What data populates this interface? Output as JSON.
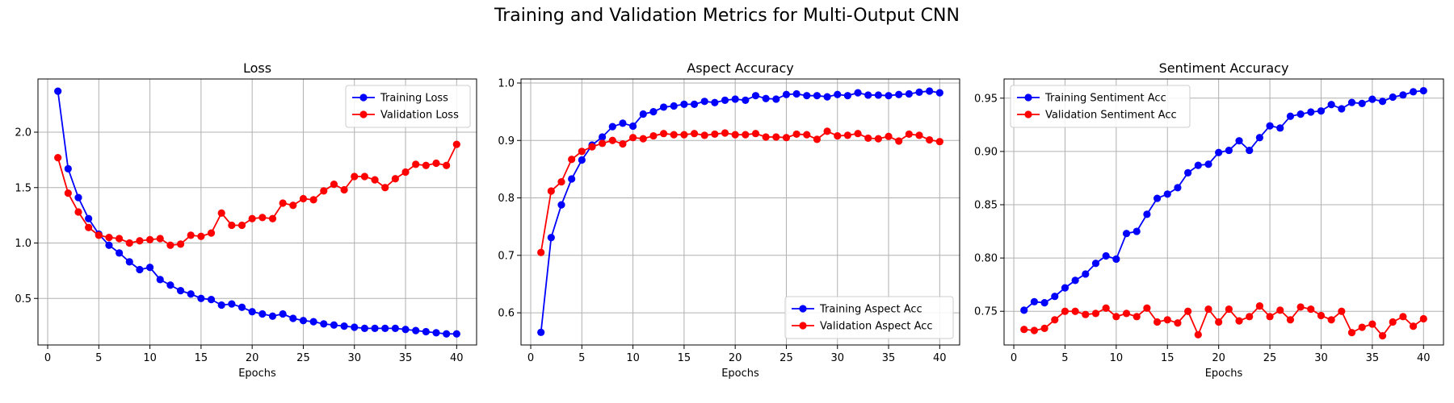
{
  "figure": {
    "title": "Training and Validation Metrics for Multi-Output CNN"
  },
  "chart_data": [
    {
      "type": "line",
      "title": "Loss",
      "xlabel": "Epochs",
      "ylabel": "",
      "xlim": [
        -0.95,
        41.95
      ],
      "ylim": [
        0.08,
        2.48
      ],
      "xticks": [
        0,
        5,
        10,
        15,
        20,
        25,
        30,
        35,
        40
      ],
      "yticks": [
        0.5,
        1.0,
        1.5,
        2.0
      ],
      "ytick_labels": [
        "0.5",
        "1.0",
        "1.5",
        "2.0"
      ],
      "grid": true,
      "legend_position": "top-right",
      "x": [
        1,
        2,
        3,
        4,
        5,
        6,
        7,
        8,
        9,
        10,
        11,
        12,
        13,
        14,
        15,
        16,
        17,
        18,
        19,
        20,
        21,
        22,
        23,
        24,
        25,
        26,
        27,
        28,
        29,
        30,
        31,
        32,
        33,
        34,
        35,
        36,
        37,
        38,
        39,
        40
      ],
      "series": [
        {
          "name": "Training Loss",
          "color": "#0000ff",
          "values": [
            2.37,
            1.67,
            1.41,
            1.22,
            1.08,
            0.98,
            0.91,
            0.83,
            0.76,
            0.78,
            0.67,
            0.62,
            0.57,
            0.54,
            0.5,
            0.49,
            0.44,
            0.45,
            0.42,
            0.38,
            0.36,
            0.34,
            0.36,
            0.32,
            0.3,
            0.29,
            0.27,
            0.26,
            0.25,
            0.24,
            0.23,
            0.23,
            0.23,
            0.23,
            0.22,
            0.21,
            0.2,
            0.19,
            0.18,
            0.18
          ]
        },
        {
          "name": "Validation Loss",
          "color": "#ff0000",
          "values": [
            1.77,
            1.45,
            1.28,
            1.14,
            1.07,
            1.05,
            1.04,
            1.0,
            1.02,
            1.03,
            1.04,
            0.98,
            0.99,
            1.07,
            1.06,
            1.09,
            1.27,
            1.16,
            1.16,
            1.22,
            1.23,
            1.22,
            1.36,
            1.34,
            1.4,
            1.39,
            1.47,
            1.53,
            1.48,
            1.6,
            1.6,
            1.57,
            1.5,
            1.58,
            1.64,
            1.71,
            1.7,
            1.72,
            1.7,
            1.89
          ]
        }
      ]
    },
    {
      "type": "line",
      "title": "Aspect Accuracy",
      "xlabel": "Epochs",
      "ylabel": "",
      "xlim": [
        -0.95,
        41.95
      ],
      "ylim": [
        0.544,
        1.007
      ],
      "xticks": [
        0,
        5,
        10,
        15,
        20,
        25,
        30,
        35,
        40
      ],
      "yticks": [
        0.6,
        0.7,
        0.8,
        0.9,
        1.0
      ],
      "ytick_labels": [
        "0.6",
        "0.7",
        "0.8",
        "0.9",
        "1.0"
      ],
      "grid": true,
      "legend_position": "bottom-right",
      "x": [
        1,
        2,
        3,
        4,
        5,
        6,
        7,
        8,
        9,
        10,
        11,
        12,
        13,
        14,
        15,
        16,
        17,
        18,
        19,
        20,
        21,
        22,
        23,
        24,
        25,
        26,
        27,
        28,
        29,
        30,
        31,
        32,
        33,
        34,
        35,
        36,
        37,
        38,
        39,
        40
      ],
      "series": [
        {
          "name": "Training Aspect Acc",
          "color": "#0000ff",
          "values": [
            0.566,
            0.731,
            0.788,
            0.833,
            0.866,
            0.892,
            0.906,
            0.924,
            0.93,
            0.925,
            0.946,
            0.95,
            0.958,
            0.96,
            0.963,
            0.963,
            0.968,
            0.966,
            0.97,
            0.972,
            0.97,
            0.978,
            0.973,
            0.972,
            0.98,
            0.981,
            0.978,
            0.978,
            0.976,
            0.98,
            0.978,
            0.983,
            0.979,
            0.979,
            0.978,
            0.98,
            0.981,
            0.984,
            0.986,
            0.983
          ]
        },
        {
          "name": "Validation Aspect Acc",
          "color": "#ff0000",
          "values": [
            0.705,
            0.812,
            0.828,
            0.867,
            0.881,
            0.889,
            0.895,
            0.9,
            0.894,
            0.905,
            0.903,
            0.908,
            0.912,
            0.91,
            0.91,
            0.912,
            0.909,
            0.911,
            0.913,
            0.91,
            0.91,
            0.912,
            0.906,
            0.906,
            0.905,
            0.911,
            0.91,
            0.902,
            0.916,
            0.908,
            0.909,
            0.912,
            0.904,
            0.903,
            0.907,
            0.899,
            0.911,
            0.909,
            0.901,
            0.898
          ]
        }
      ]
    },
    {
      "type": "line",
      "title": "Sentiment Accuracy",
      "xlabel": "Epochs",
      "ylabel": "",
      "xlim": [
        -0.95,
        41.95
      ],
      "ylim": [
        0.7184,
        0.968
      ],
      "xticks": [
        0,
        5,
        10,
        15,
        20,
        25,
        30,
        35,
        40
      ],
      "yticks": [
        0.75,
        0.8,
        0.85,
        0.9,
        0.95
      ],
      "ytick_labels": [
        "0.75",
        "0.80",
        "0.85",
        "0.90",
        "0.95"
      ],
      "grid": true,
      "legend_position": "top-left",
      "x": [
        1,
        2,
        3,
        4,
        5,
        6,
        7,
        8,
        9,
        10,
        11,
        12,
        13,
        14,
        15,
        16,
        17,
        18,
        19,
        20,
        21,
        22,
        23,
        24,
        25,
        26,
        27,
        28,
        29,
        30,
        31,
        32,
        33,
        34,
        35,
        36,
        37,
        38,
        39,
        40
      ],
      "series": [
        {
          "name": "Training Sentiment Acc",
          "color": "#0000ff",
          "values": [
            0.751,
            0.759,
            0.758,
            0.764,
            0.772,
            0.779,
            0.785,
            0.795,
            0.802,
            0.799,
            0.823,
            0.825,
            0.841,
            0.856,
            0.86,
            0.866,
            0.88,
            0.887,
            0.888,
            0.899,
            0.901,
            0.91,
            0.901,
            0.913,
            0.924,
            0.922,
            0.933,
            0.935,
            0.937,
            0.938,
            0.944,
            0.94,
            0.946,
            0.945,
            0.949,
            0.947,
            0.951,
            0.953,
            0.956,
            0.957
          ]
        },
        {
          "name": "Validation Sentiment Acc",
          "color": "#ff0000",
          "values": [
            0.733,
            0.732,
            0.734,
            0.742,
            0.75,
            0.75,
            0.747,
            0.748,
            0.753,
            0.745,
            0.748,
            0.745,
            0.753,
            0.74,
            0.742,
            0.739,
            0.75,
            0.728,
            0.752,
            0.74,
            0.752,
            0.741,
            0.745,
            0.755,
            0.745,
            0.751,
            0.742,
            0.754,
            0.752,
            0.746,
            0.742,
            0.75,
            0.73,
            0.735,
            0.738,
            0.727,
            0.74,
            0.745,
            0.736,
            0.743
          ]
        }
      ]
    }
  ]
}
